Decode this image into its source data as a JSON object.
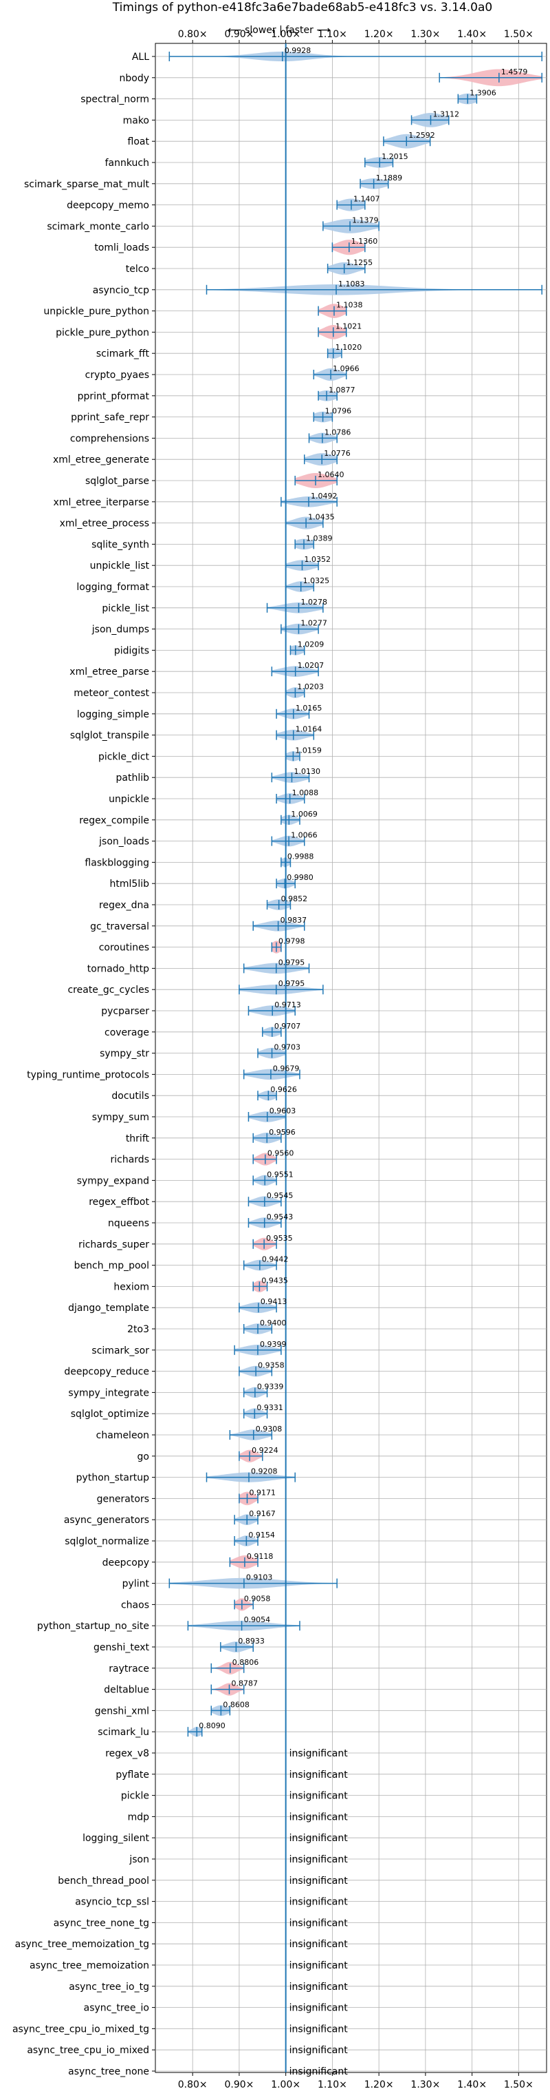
{
  "chart_data": {
    "type": "violin",
    "title": "Timings of python-e418fc3a6e7bade68ab5-e418fc3 vs. 3.14.0a0",
    "direction_label": "⟵ slower | faster ⟶",
    "xlim": [
      0.72,
      1.56
    ],
    "x_ticks": [
      0.8,
      0.9,
      1.0,
      1.1,
      1.2,
      1.3,
      1.4,
      1.5
    ],
    "x_tick_labels": [
      "0.80×",
      "0.90×",
      "1.00×",
      "1.10×",
      "1.20×",
      "1.30×",
      "1.40×",
      "1.50×"
    ],
    "grid": true,
    "reference_line": 1.0,
    "insignificant_label": "insignificant",
    "colors": {
      "faster": "#aecbe8",
      "slower": "#f4b6bd",
      "whisker": "#1f77b4",
      "grid": "#b0b0b0"
    },
    "benchmarks": [
      {
        "name": "ALL",
        "value": 0.9928,
        "label": "0.9928",
        "lo": 0.75,
        "hi": 1.55,
        "spread": 0.06,
        "width": 0.55,
        "status": "faster"
      },
      {
        "name": "nbody",
        "value": 1.4579,
        "label": "1.4579",
        "lo": 1.33,
        "hi": 1.55,
        "spread": 0.05,
        "width": 0.95,
        "status": "slower"
      },
      {
        "name": "spectral_norm",
        "value": 1.3906,
        "label": "1.3906",
        "lo": 1.37,
        "hi": 1.41,
        "spread": 0.02,
        "width": 0.6,
        "status": "faster"
      },
      {
        "name": "mako",
        "value": 1.3112,
        "label": "1.3112",
        "lo": 1.27,
        "hi": 1.35,
        "spread": 0.03,
        "width": 0.8,
        "status": "faster"
      },
      {
        "name": "float",
        "value": 1.2592,
        "label": "1.2592",
        "lo": 1.21,
        "hi": 1.31,
        "spread": 0.03,
        "width": 0.8,
        "status": "faster"
      },
      {
        "name": "fannkuch",
        "value": 1.2015,
        "label": "1.2015",
        "lo": 1.17,
        "hi": 1.23,
        "spread": 0.025,
        "width": 0.6,
        "status": "faster"
      },
      {
        "name": "scimark_sparse_mat_mult",
        "value": 1.1889,
        "label": "1.1889",
        "lo": 1.16,
        "hi": 1.22,
        "spread": 0.025,
        "width": 0.6,
        "status": "faster"
      },
      {
        "name": "deepcopy_memo",
        "value": 1.1407,
        "label": "1.1407",
        "lo": 1.11,
        "hi": 1.17,
        "spread": 0.025,
        "width": 0.7,
        "status": "faster"
      },
      {
        "name": "scimark_monte_carlo",
        "value": 1.1379,
        "label": "1.1379",
        "lo": 1.08,
        "hi": 1.2,
        "spread": 0.04,
        "width": 0.8,
        "status": "faster"
      },
      {
        "name": "tomli_loads",
        "value": 1.136,
        "label": "1.1360",
        "lo": 1.1,
        "hi": 1.17,
        "spread": 0.025,
        "width": 0.85,
        "status": "slower"
      },
      {
        "name": "telco",
        "value": 1.1255,
        "label": "1.1255",
        "lo": 1.09,
        "hi": 1.17,
        "spread": 0.025,
        "width": 0.7,
        "status": "faster"
      },
      {
        "name": "asyncio_tcp",
        "value": 1.1083,
        "label": "1.1083",
        "lo": 0.83,
        "hi": 1.55,
        "spread": 0.12,
        "width": 0.6,
        "status": "faster"
      },
      {
        "name": "unpickle_pure_python",
        "value": 1.1038,
        "label": "1.1038",
        "lo": 1.07,
        "hi": 1.13,
        "spread": 0.02,
        "width": 0.8,
        "status": "slower"
      },
      {
        "name": "pickle_pure_python",
        "value": 1.1021,
        "label": "1.1021",
        "lo": 1.07,
        "hi": 1.13,
        "spread": 0.02,
        "width": 0.8,
        "status": "slower"
      },
      {
        "name": "scimark_fft",
        "value": 1.102,
        "label": "1.1020",
        "lo": 1.09,
        "hi": 1.12,
        "spread": 0.015,
        "width": 0.6,
        "status": "faster"
      },
      {
        "name": "crypto_pyaes",
        "value": 1.0966,
        "label": "1.0966",
        "lo": 1.06,
        "hi": 1.13,
        "spread": 0.02,
        "width": 0.7,
        "status": "faster"
      },
      {
        "name": "pprint_pformat",
        "value": 1.0877,
        "label": "1.0877",
        "lo": 1.07,
        "hi": 1.11,
        "spread": 0.02,
        "width": 0.6,
        "status": "faster"
      },
      {
        "name": "pprint_safe_repr",
        "value": 1.0796,
        "label": "1.0796",
        "lo": 1.06,
        "hi": 1.1,
        "spread": 0.02,
        "width": 0.6,
        "status": "faster"
      },
      {
        "name": "comprehensions",
        "value": 1.0786,
        "label": "1.0786",
        "lo": 1.05,
        "hi": 1.11,
        "spread": 0.02,
        "width": 0.6,
        "status": "faster"
      },
      {
        "name": "xml_etree_generate",
        "value": 1.0776,
        "label": "1.0776",
        "lo": 1.04,
        "hi": 1.11,
        "spread": 0.025,
        "width": 0.7,
        "status": "faster"
      },
      {
        "name": "sqlglot_parse",
        "value": 1.064,
        "label": "1.0640",
        "lo": 1.02,
        "hi": 1.11,
        "spread": 0.03,
        "width": 0.85,
        "status": "slower"
      },
      {
        "name": "xml_etree_iterparse",
        "value": 1.0492,
        "label": "1.0492",
        "lo": 0.99,
        "hi": 1.11,
        "spread": 0.035,
        "width": 0.6,
        "status": "faster"
      },
      {
        "name": "xml_etree_process",
        "value": 1.0435,
        "label": "1.0435",
        "lo": 1.0,
        "hi": 1.08,
        "spread": 0.025,
        "width": 0.7,
        "status": "faster"
      },
      {
        "name": "sqlite_synth",
        "value": 1.0389,
        "label": "1.0389",
        "lo": 1.02,
        "hi": 1.06,
        "spread": 0.02,
        "width": 0.6,
        "status": "faster"
      },
      {
        "name": "unpickle_list",
        "value": 1.0352,
        "label": "1.0352",
        "lo": 1.0,
        "hi": 1.07,
        "spread": 0.025,
        "width": 0.6,
        "status": "faster"
      },
      {
        "name": "logging_format",
        "value": 1.0325,
        "label": "1.0325",
        "lo": 1.0,
        "hi": 1.06,
        "spread": 0.02,
        "width": 0.6,
        "status": "faster"
      },
      {
        "name": "pickle_list",
        "value": 1.0278,
        "label": "1.0278",
        "lo": 0.96,
        "hi": 1.08,
        "spread": 0.035,
        "width": 0.6,
        "status": "faster"
      },
      {
        "name": "json_dumps",
        "value": 1.0277,
        "label": "1.0277",
        "lo": 0.99,
        "hi": 1.07,
        "spread": 0.025,
        "width": 0.6,
        "status": "faster"
      },
      {
        "name": "pidigits",
        "value": 1.0209,
        "label": "1.0209",
        "lo": 1.01,
        "hi": 1.04,
        "spread": 0.015,
        "width": 0.55,
        "status": "faster"
      },
      {
        "name": "xml_etree_parse",
        "value": 1.0207,
        "label": "1.0207",
        "lo": 0.97,
        "hi": 1.07,
        "spread": 0.03,
        "width": 0.6,
        "status": "faster"
      },
      {
        "name": "meteor_contest",
        "value": 1.0203,
        "label": "1.0203",
        "lo": 1.0,
        "hi": 1.04,
        "spread": 0.015,
        "width": 0.6,
        "status": "faster"
      },
      {
        "name": "logging_simple",
        "value": 1.0165,
        "label": "1.0165",
        "lo": 0.98,
        "hi": 1.05,
        "spread": 0.02,
        "width": 0.6,
        "status": "faster"
      },
      {
        "name": "sqlglot_transpile",
        "value": 1.0164,
        "label": "1.0164",
        "lo": 0.98,
        "hi": 1.06,
        "spread": 0.025,
        "width": 0.6,
        "status": "faster"
      },
      {
        "name": "pickle_dict",
        "value": 1.0159,
        "label": "1.0159",
        "lo": 1.0,
        "hi": 1.03,
        "spread": 0.015,
        "width": 0.55,
        "status": "faster"
      },
      {
        "name": "pathlib",
        "value": 1.013,
        "label": "1.0130",
        "lo": 0.97,
        "hi": 1.05,
        "spread": 0.025,
        "width": 0.6,
        "status": "faster"
      },
      {
        "name": "unpickle",
        "value": 1.0088,
        "label": "1.0088",
        "lo": 0.98,
        "hi": 1.04,
        "spread": 0.02,
        "width": 0.6,
        "status": "faster"
      },
      {
        "name": "regex_compile",
        "value": 1.0069,
        "label": "1.0069",
        "lo": 0.99,
        "hi": 1.03,
        "spread": 0.015,
        "width": 0.55,
        "status": "faster"
      },
      {
        "name": "json_loads",
        "value": 1.0066,
        "label": "1.0066",
        "lo": 0.97,
        "hi": 1.04,
        "spread": 0.02,
        "width": 0.6,
        "status": "faster"
      },
      {
        "name": "flaskblogging",
        "value": 0.9988,
        "label": "0.9988",
        "lo": 0.99,
        "hi": 1.01,
        "spread": 0.01,
        "width": 0.5,
        "status": "faster"
      },
      {
        "name": "html5lib",
        "value": 0.998,
        "label": "0.9980",
        "lo": 0.98,
        "hi": 1.02,
        "spread": 0.015,
        "width": 0.55,
        "status": "faster"
      },
      {
        "name": "regex_dna",
        "value": 0.9852,
        "label": "0.9852",
        "lo": 0.96,
        "hi": 1.01,
        "spread": 0.02,
        "width": 0.6,
        "status": "faster"
      },
      {
        "name": "gc_traversal",
        "value": 0.9837,
        "label": "0.9837",
        "lo": 0.93,
        "hi": 1.04,
        "spread": 0.03,
        "width": 0.6,
        "status": "faster"
      },
      {
        "name": "coroutines",
        "value": 0.9798,
        "label": "0.9798",
        "lo": 0.97,
        "hi": 0.99,
        "spread": 0.01,
        "width": 0.7,
        "status": "slower"
      },
      {
        "name": "tornado_http",
        "value": 0.9795,
        "label": "0.9795",
        "lo": 0.91,
        "hi": 1.05,
        "spread": 0.04,
        "width": 0.6,
        "status": "faster"
      },
      {
        "name": "create_gc_cycles",
        "value": 0.9795,
        "label": "0.9795",
        "lo": 0.9,
        "hi": 1.08,
        "spread": 0.05,
        "width": 0.55,
        "status": "faster"
      },
      {
        "name": "pycparser",
        "value": 0.9713,
        "label": "0.9713",
        "lo": 0.92,
        "hi": 1.02,
        "spread": 0.03,
        "width": 0.6,
        "status": "faster"
      },
      {
        "name": "coverage",
        "value": 0.9707,
        "label": "0.9707",
        "lo": 0.95,
        "hi": 0.99,
        "spread": 0.015,
        "width": 0.55,
        "status": "faster"
      },
      {
        "name": "sympy_str",
        "value": 0.9703,
        "label": "0.9703",
        "lo": 0.94,
        "hi": 1.0,
        "spread": 0.02,
        "width": 0.6,
        "status": "faster"
      },
      {
        "name": "typing_runtime_protocols",
        "value": 0.9679,
        "label": "0.9679",
        "lo": 0.91,
        "hi": 1.03,
        "spread": 0.035,
        "width": 0.6,
        "status": "faster"
      },
      {
        "name": "docutils",
        "value": 0.9626,
        "label": "0.9626",
        "lo": 0.94,
        "hi": 0.98,
        "spread": 0.015,
        "width": 0.55,
        "status": "faster"
      },
      {
        "name": "sympy_sum",
        "value": 0.9603,
        "label": "0.9603",
        "lo": 0.92,
        "hi": 1.0,
        "spread": 0.025,
        "width": 0.6,
        "status": "faster"
      },
      {
        "name": "thrift",
        "value": 0.9596,
        "label": "0.9596",
        "lo": 0.93,
        "hi": 0.99,
        "spread": 0.02,
        "width": 0.6,
        "status": "faster"
      },
      {
        "name": "richards",
        "value": 0.956,
        "label": "0.9560",
        "lo": 0.93,
        "hi": 0.98,
        "spread": 0.015,
        "width": 0.7,
        "status": "slower"
      },
      {
        "name": "sympy_expand",
        "value": 0.9551,
        "label": "0.9551",
        "lo": 0.93,
        "hi": 0.98,
        "spread": 0.015,
        "width": 0.6,
        "status": "faster"
      },
      {
        "name": "regex_effbot",
        "value": 0.9545,
        "label": "0.9545",
        "lo": 0.92,
        "hi": 0.99,
        "spread": 0.02,
        "width": 0.6,
        "status": "faster"
      },
      {
        "name": "nqueens",
        "value": 0.9543,
        "label": "0.9543",
        "lo": 0.92,
        "hi": 0.99,
        "spread": 0.02,
        "width": 0.6,
        "status": "faster"
      },
      {
        "name": "richards_super",
        "value": 0.9535,
        "label": "0.9535",
        "lo": 0.93,
        "hi": 0.98,
        "spread": 0.015,
        "width": 0.7,
        "status": "slower"
      },
      {
        "name": "bench_mp_pool",
        "value": 0.9442,
        "label": "0.9442",
        "lo": 0.91,
        "hi": 0.98,
        "spread": 0.02,
        "width": 0.6,
        "status": "faster"
      },
      {
        "name": "hexiom",
        "value": 0.9435,
        "label": "0.9435",
        "lo": 0.93,
        "hi": 0.96,
        "spread": 0.012,
        "width": 0.65,
        "status": "slower"
      },
      {
        "name": "django_template",
        "value": 0.9413,
        "label": "0.9413",
        "lo": 0.9,
        "hi": 0.98,
        "spread": 0.025,
        "width": 0.6,
        "status": "faster"
      },
      {
        "name": "2to3",
        "value": 0.94,
        "label": "0.9400",
        "lo": 0.91,
        "hi": 0.97,
        "spread": 0.02,
        "width": 0.6,
        "status": "faster"
      },
      {
        "name": "scimark_sor",
        "value": 0.9399,
        "label": "0.9399",
        "lo": 0.89,
        "hi": 0.99,
        "spread": 0.03,
        "width": 0.6,
        "status": "faster"
      },
      {
        "name": "deepcopy_reduce",
        "value": 0.9358,
        "label": "0.9358",
        "lo": 0.9,
        "hi": 0.97,
        "spread": 0.02,
        "width": 0.6,
        "status": "faster"
      },
      {
        "name": "sympy_integrate",
        "value": 0.9339,
        "label": "0.9339",
        "lo": 0.91,
        "hi": 0.96,
        "spread": 0.015,
        "width": 0.6,
        "status": "faster"
      },
      {
        "name": "sqlglot_optimize",
        "value": 0.9331,
        "label": "0.9331",
        "lo": 0.91,
        "hi": 0.96,
        "spread": 0.015,
        "width": 0.6,
        "status": "faster"
      },
      {
        "name": "chameleon",
        "value": 0.9308,
        "label": "0.9308",
        "lo": 0.88,
        "hi": 0.97,
        "spread": 0.025,
        "width": 0.6,
        "status": "faster"
      },
      {
        "name": "go",
        "value": 0.9224,
        "label": "0.9224",
        "lo": 0.9,
        "hi": 0.95,
        "spread": 0.015,
        "width": 0.7,
        "status": "slower"
      },
      {
        "name": "python_startup",
        "value": 0.9208,
        "label": "0.9208",
        "lo": 0.83,
        "hi": 1.02,
        "spread": 0.05,
        "width": 0.55,
        "status": "faster"
      },
      {
        "name": "generators",
        "value": 0.9171,
        "label": "0.9171",
        "lo": 0.9,
        "hi": 0.94,
        "spread": 0.015,
        "width": 0.75,
        "status": "slower"
      },
      {
        "name": "async_generators",
        "value": 0.9167,
        "label": "0.9167",
        "lo": 0.89,
        "hi": 0.94,
        "spread": 0.015,
        "width": 0.6,
        "status": "faster"
      },
      {
        "name": "sqlglot_normalize",
        "value": 0.9154,
        "label": "0.9154",
        "lo": 0.89,
        "hi": 0.94,
        "spread": 0.015,
        "width": 0.6,
        "status": "faster"
      },
      {
        "name": "deepcopy",
        "value": 0.9118,
        "label": "0.9118",
        "lo": 0.88,
        "hi": 0.94,
        "spread": 0.02,
        "width": 0.75,
        "status": "slower"
      },
      {
        "name": "pylint",
        "value": 0.9103,
        "label": "0.9103",
        "lo": 0.75,
        "hi": 1.11,
        "spread": 0.08,
        "width": 0.6,
        "status": "faster"
      },
      {
        "name": "chaos",
        "value": 0.9058,
        "label": "0.9058",
        "lo": 0.89,
        "hi": 0.93,
        "spread": 0.012,
        "width": 0.7,
        "status": "slower"
      },
      {
        "name": "python_startup_no_site",
        "value": 0.9054,
        "label": "0.9054",
        "lo": 0.79,
        "hi": 1.03,
        "spread": 0.06,
        "width": 0.55,
        "status": "faster"
      },
      {
        "name": "genshi_text",
        "value": 0.8933,
        "label": "0.8933",
        "lo": 0.86,
        "hi": 0.93,
        "spread": 0.02,
        "width": 0.6,
        "status": "faster"
      },
      {
        "name": "raytrace",
        "value": 0.8806,
        "label": "0.8806",
        "lo": 0.84,
        "hi": 0.91,
        "spread": 0.015,
        "width": 0.7,
        "status": "slower"
      },
      {
        "name": "deltablue",
        "value": 0.8787,
        "label": "0.8787",
        "lo": 0.84,
        "hi": 0.91,
        "spread": 0.015,
        "width": 0.7,
        "status": "slower"
      },
      {
        "name": "genshi_xml",
        "value": 0.8608,
        "label": "0.8608",
        "lo": 0.84,
        "hi": 0.88,
        "spread": 0.015,
        "width": 0.6,
        "status": "faster"
      },
      {
        "name": "scimark_lu",
        "value": 0.809,
        "label": "0.8090",
        "lo": 0.79,
        "hi": 0.82,
        "spread": 0.01,
        "width": 0.55,
        "status": "faster"
      },
      {
        "name": "regex_v8",
        "status": "insignificant"
      },
      {
        "name": "pyflate",
        "status": "insignificant"
      },
      {
        "name": "pickle",
        "status": "insignificant"
      },
      {
        "name": "mdp",
        "status": "insignificant"
      },
      {
        "name": "logging_silent",
        "status": "insignificant"
      },
      {
        "name": "json",
        "status": "insignificant"
      },
      {
        "name": "bench_thread_pool",
        "status": "insignificant"
      },
      {
        "name": "asyncio_tcp_ssl",
        "status": "insignificant"
      },
      {
        "name": "async_tree_none_tg",
        "status": "insignificant"
      },
      {
        "name": "async_tree_memoization_tg",
        "status": "insignificant"
      },
      {
        "name": "async_tree_memoization",
        "status": "insignificant"
      },
      {
        "name": "async_tree_io_tg",
        "status": "insignificant"
      },
      {
        "name": "async_tree_io",
        "status": "insignificant"
      },
      {
        "name": "async_tree_cpu_io_mixed_tg",
        "status": "insignificant"
      },
      {
        "name": "async_tree_cpu_io_mixed",
        "status": "insignificant"
      },
      {
        "name": "async_tree_none",
        "status": "insignificant"
      }
    ]
  }
}
